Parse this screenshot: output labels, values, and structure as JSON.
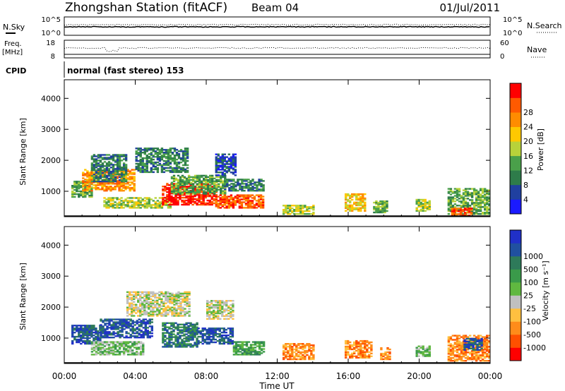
{
  "header": {
    "station": "Zhongshan Station (fitACF)",
    "beam": "Beam 04",
    "date": "01/Jul/2011"
  },
  "status": {
    "nsky_label": "N.Sky",
    "nsky_ticks": [
      "10^5",
      "10^0"
    ],
    "nsearch_label": "N.Search",
    "nsearch_ticks": [
      "10^5",
      "10^0"
    ],
    "freq_label": "Freq.",
    "freq_unit": "[MHz]",
    "freq_ticks": [
      "18",
      "8"
    ],
    "nave_label": "Nave",
    "nave_ticks": [
      "60",
      "0"
    ],
    "cpid_label": "CPID",
    "cpid_text": "normal (fast stereo) 153"
  },
  "colors": {
    "power": [
      "#1a1aff",
      "#2040a0",
      "#2e7c4a",
      "#4aa04a",
      "#b8d23a",
      "#ffc800",
      "#ff8c00",
      "#ff5a00",
      "#ff0000"
    ],
    "velocity": [
      "#ff0000",
      "#ff5000",
      "#ff8c1a",
      "#ffc040",
      "#c0c0c0",
      "#60b840",
      "#3a9a4a",
      "#2e7a5a",
      "#2050a0",
      "#2030c8"
    ]
  },
  "chart_data": [
    {
      "type": "heatmap",
      "name": "power",
      "ylabel": "Slant Range [km]",
      "xlabel": "",
      "x_ticks": [
        "00:00",
        "04:00",
        "08:00",
        "12:00",
        "16:00",
        "20:00",
        "00:00"
      ],
      "y_ticks": [
        "1000",
        "2000",
        "3000",
        "4000"
      ],
      "xlim": [
        0,
        24
      ],
      "ylim": [
        180,
        4600
      ],
      "colorbar_label": "Power [dB]",
      "colorbar_ticks": [
        "4",
        "8",
        "12",
        "16",
        "20",
        "24",
        "28"
      ],
      "regions": [
        {
          "x": [
            0.4,
            1.6
          ],
          "y": [
            800,
            1300
          ],
          "v": 3
        },
        {
          "x": [
            1.0,
            4.0
          ],
          "y": [
            1000,
            1700
          ],
          "v": 6
        },
        {
          "x": [
            1.5,
            3.5
          ],
          "y": [
            1300,
            2200
          ],
          "v": 2
        },
        {
          "x": [
            2.2,
            6.0
          ],
          "y": [
            450,
            800
          ],
          "v": 4
        },
        {
          "x": [
            4.0,
            7.0
          ],
          "y": [
            1600,
            2400
          ],
          "v": 2
        },
        {
          "x": [
            5.5,
            8.5
          ],
          "y": [
            550,
            1250
          ],
          "v": 8
        },
        {
          "x": [
            6.0,
            9.0
          ],
          "y": [
            900,
            1500
          ],
          "v": 3
        },
        {
          "x": [
            8.5,
            11.2
          ],
          "y": [
            450,
            900
          ],
          "v": 7
        },
        {
          "x": [
            9.0,
            11.2
          ],
          "y": [
            1000,
            1400
          ],
          "v": 2
        },
        {
          "x": [
            8.5,
            9.6
          ],
          "y": [
            1500,
            2200
          ],
          "v": 1
        },
        {
          "x": [
            12.3,
            14.0
          ],
          "y": [
            250,
            550
          ],
          "v": 4
        },
        {
          "x": [
            15.8,
            17.0
          ],
          "y": [
            350,
            900
          ],
          "v": 5
        },
        {
          "x": [
            17.4,
            18.2
          ],
          "y": [
            300,
            700
          ],
          "v": 3
        },
        {
          "x": [
            19.8,
            20.6
          ],
          "y": [
            350,
            750
          ],
          "v": 4
        },
        {
          "x": [
            21.6,
            23.9
          ],
          "y": [
            250,
            1100
          ],
          "v": 3
        },
        {
          "x": [
            21.8,
            23.0
          ],
          "y": [
            200,
            450
          ],
          "v": 7
        }
      ]
    },
    {
      "type": "heatmap",
      "name": "velocity",
      "ylabel": "Slant Range [km]",
      "xlabel": "Time UT",
      "x_ticks": [
        "00:00",
        "04:00",
        "08:00",
        "12:00",
        "16:00",
        "20:00",
        "00:00"
      ],
      "y_ticks": [
        "1000",
        "2000",
        "3000",
        "4000"
      ],
      "xlim": [
        0,
        24
      ],
      "ylim": [
        180,
        4600
      ],
      "colorbar_label": "Velocity [m s⁻¹]",
      "colorbar_ticks": [
        "-1000",
        "-500",
        "-100",
        "-25",
        "25",
        "100",
        "500",
        "1000"
      ],
      "regions": [
        {
          "x": [
            0.4,
            2.0
          ],
          "y": [
            800,
            1400
          ],
          "v": 8
        },
        {
          "x": [
            1.5,
            4.5
          ],
          "y": [
            450,
            900
          ],
          "v": 5
        },
        {
          "x": [
            2.0,
            5.0
          ],
          "y": [
            1000,
            1600
          ],
          "v": 8
        },
        {
          "x": [
            3.5,
            7.0
          ],
          "y": [
            1700,
            2500
          ],
          "v": 4
        },
        {
          "x": [
            5.5,
            7.5
          ],
          "y": [
            700,
            1500
          ],
          "v": 7
        },
        {
          "x": [
            7.5,
            9.5
          ],
          "y": [
            800,
            1300
          ],
          "v": 8
        },
        {
          "x": [
            8.0,
            9.5
          ],
          "y": [
            1600,
            2200
          ],
          "v": 4
        },
        {
          "x": [
            9.5,
            11.2
          ],
          "y": [
            450,
            900
          ],
          "v": 6
        },
        {
          "x": [
            12.3,
            14.0
          ],
          "y": [
            300,
            800
          ],
          "v": 2
        },
        {
          "x": [
            15.8,
            17.3
          ],
          "y": [
            350,
            900
          ],
          "v": 2
        },
        {
          "x": [
            17.8,
            18.4
          ],
          "y": [
            300,
            700
          ],
          "v": 2
        },
        {
          "x": [
            19.8,
            20.6
          ],
          "y": [
            400,
            750
          ],
          "v": 5
        },
        {
          "x": [
            21.6,
            23.9
          ],
          "y": [
            250,
            1100
          ],
          "v": 2
        },
        {
          "x": [
            22.5,
            23.5
          ],
          "y": [
            600,
            1000
          ],
          "v": 8
        }
      ]
    }
  ]
}
